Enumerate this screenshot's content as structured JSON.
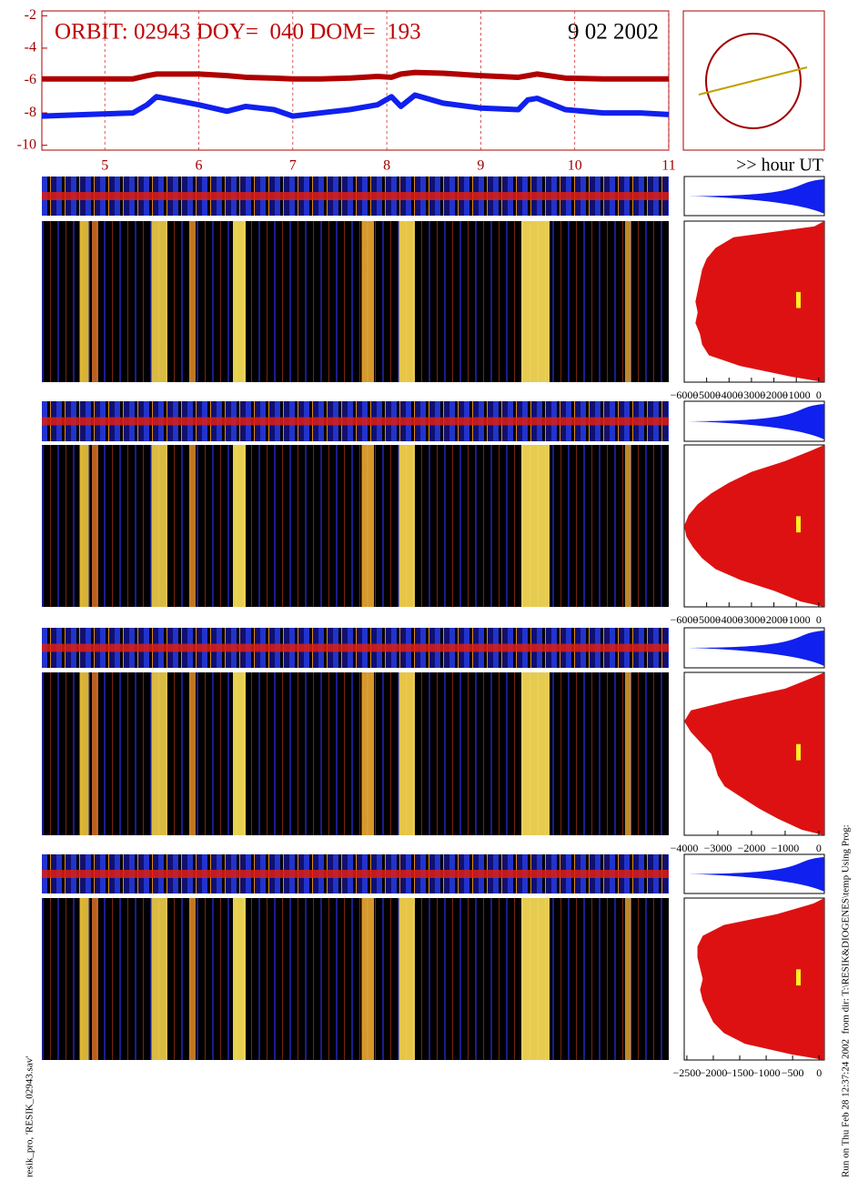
{
  "chart_data": [
    {
      "type": "line",
      "title": "ORBIT: 02943 DOY=  040 DOM=  193",
      "date": "9 02 2002",
      "xlabel": ">> hour UT",
      "x": [
        4.33,
        4.8,
        5.3,
        5.45,
        5.55,
        6.0,
        6.3,
        6.5,
        6.8,
        7.0,
        7.3,
        7.6,
        7.9,
        8.05,
        8.15,
        8.3,
        8.6,
        9.0,
        9.4,
        9.5,
        9.6,
        9.9,
        10.3,
        10.7,
        11
      ],
      "series": [
        {
          "color": "#b00000",
          "values": [
            -5.9,
            -5.9,
            -5.9,
            -5.7,
            -5.6,
            -5.6,
            -5.7,
            -5.8,
            -5.85,
            -5.9,
            -5.9,
            -5.85,
            -5.75,
            -5.8,
            -5.6,
            -5.5,
            -5.55,
            -5.7,
            -5.8,
            -5.7,
            -5.6,
            -5.85,
            -5.9,
            -5.9,
            -5.9
          ]
        },
        {
          "color": "#1020ee",
          "values": [
            -8.2,
            -8.1,
            -8.0,
            -7.5,
            -7.0,
            -7.5,
            -7.9,
            -7.6,
            -7.8,
            -8.2,
            -8.0,
            -7.8,
            -7.5,
            -7.0,
            -7.6,
            -6.9,
            -7.4,
            -7.7,
            -7.8,
            -7.2,
            -7.1,
            -7.8,
            -8.0,
            -8.0,
            -8.1
          ]
        }
      ],
      "xlim": [
        4.33,
        11
      ],
      "xticks": [
        5,
        6,
        7,
        8,
        9,
        10,
        11
      ],
      "ylim": [
        -10.3,
        -1.7
      ],
      "yticks": [
        -2,
        -4,
        -6,
        -8,
        -10
      ],
      "grid": true
    },
    {
      "type": "area",
      "color": "#dd1111",
      "xlim": [
        -6000,
        250
      ],
      "xticks": [
        {
          "value": -6000,
          "label": "−6000"
        },
        {
          "value": -5000,
          "label": "−5000"
        },
        {
          "value": -4000,
          "label": "−4000"
        },
        {
          "value": -3000,
          "label": "−3000"
        },
        {
          "value": -2000,
          "label": "−2000"
        },
        {
          "value": -1000,
          "label": "−1000"
        },
        0
      ],
      "values": [
        -200,
        -3800,
        -4600,
        -5000,
        -5200,
        -5300,
        -5400,
        -5500,
        -5400,
        -5500,
        -5300,
        -5200,
        -4900,
        -3500,
        -1200
      ]
    },
    {
      "type": "area",
      "color": "#dd1111",
      "xlim": [
        -6000,
        250
      ],
      "xticks": [
        {
          "value": -6000,
          "label": "−6000"
        },
        {
          "value": -5000,
          "label": "−5000"
        },
        {
          "value": -4000,
          "label": "−4000"
        },
        {
          "value": -3000,
          "label": "−3000"
        },
        {
          "value": -2000,
          "label": "−2000"
        },
        {
          "value": -1000,
          "label": "−1000"
        },
        0
      ],
      "values": [
        -300,
        -1500,
        -3000,
        -4000,
        -4800,
        -5400,
        -5800,
        -6000,
        -5900,
        -5600,
        -5200,
        -4600,
        -3500,
        -2000,
        -800
      ]
    },
    {
      "type": "area",
      "color": "#dd1111",
      "xlim": [
        -4000,
        165
      ],
      "xticks": [
        {
          "value": -4000,
          "label": "−4000"
        },
        {
          "value": -3000,
          "label": "−3000"
        },
        {
          "value": -2000,
          "label": "−2000"
        },
        {
          "value": -1000,
          "label": "−1000"
        },
        0
      ],
      "values": [
        -200,
        -1000,
        -2500,
        -3800,
        -4000,
        -3800,
        -3500,
        -3200,
        -3100,
        -3000,
        -2800,
        -2300,
        -1800,
        -1200,
        -500
      ]
    },
    {
      "type": "area",
      "color": "#dd1111",
      "xlim": [
        -2550,
        100
      ],
      "xticks": [
        {
          "value": -2500,
          "label": "−2500"
        },
        {
          "value": -2000,
          "label": "−2000"
        },
        {
          "value": -1500,
          "label": "−1500"
        },
        {
          "value": -1000,
          "label": "−1000"
        },
        {
          "value": -500,
          "label": "−500"
        },
        0
      ],
      "values": [
        -100,
        -800,
        -1800,
        -2200,
        -2300,
        -2300,
        -2250,
        -2200,
        -2250,
        -2200,
        -2100,
        -2000,
        -1800,
        -1400,
        -500
      ]
    }
  ],
  "footer": {
    "left_note": "resik_pro, 'RESIK_02943.sav'",
    "right_note": "Run on Thu Feb 28 12:37:24 2002  from dir: T:\\RESIK&DIOGENES\\temp Using Prog:"
  }
}
